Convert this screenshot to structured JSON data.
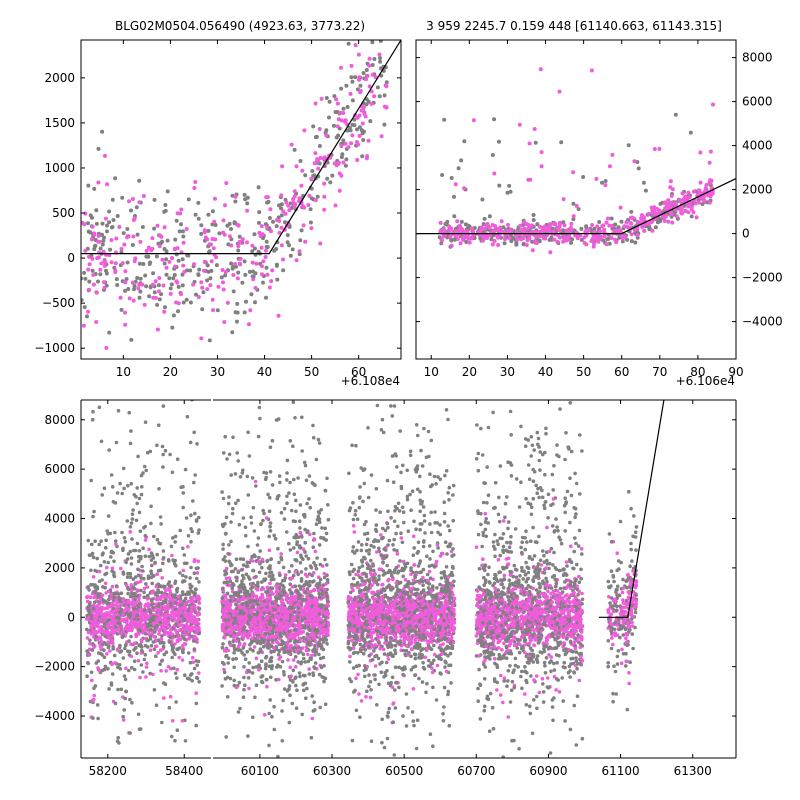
{
  "colors": {
    "gray": "#808080",
    "magenta": "#f05cdc",
    "fit": "#000000"
  },
  "chart_data": [
    {
      "id": "top-left",
      "type": "scatter",
      "title": "BLG02M0504.056490 (4923.63, 3773.22)",
      "x_offset_label": "+6.108e4",
      "xlim": [
        1,
        69
      ],
      "ylim": [
        -1120,
        2420
      ],
      "xticks": [
        "10",
        "20",
        "30",
        "40",
        "50",
        "60"
      ],
      "yticks": [
        "−1000",
        "−500",
        "0",
        "500",
        "1000",
        "1500",
        "2000"
      ],
      "xtick_values": [
        10,
        20,
        30,
        40,
        50,
        60
      ],
      "ytick_values": [
        -1000,
        -500,
        0,
        500,
        1000,
        1500,
        2000
      ],
      "y_axis_side": "left",
      "series": [
        {
          "color": "gray",
          "x_range": [
            1,
            66
          ],
          "count": 420,
          "seed": 11
        },
        {
          "color": "magenta",
          "x_range": [
            1,
            66
          ],
          "count": 330,
          "seed": 23
        }
      ],
      "fit": {
        "x": [
          1,
          41,
          69
        ],
        "y": [
          50,
          50,
          2420
        ]
      }
    },
    {
      "id": "top-right",
      "type": "scatter",
      "title": "3 959 2245.7 0.159 448 [61140.663, 61143.315]",
      "x_offset_label": "+6.106e4",
      "xlim": [
        6,
        90
      ],
      "ylim": [
        -5700,
        8800
      ],
      "xticks": [
        "10",
        "20",
        "30",
        "40",
        "50",
        "60",
        "70",
        "80",
        "90"
      ],
      "yticks": [
        "−4000",
        "−2000",
        "0",
        "2000",
        "4000",
        "6000",
        "8000"
      ],
      "xtick_values": [
        10,
        20,
        30,
        40,
        50,
        60,
        70,
        80,
        90
      ],
      "ytick_values": [
        -4000,
        -2000,
        0,
        2000,
        4000,
        6000,
        8000
      ],
      "y_axis_side": "right",
      "series": [
        {
          "color": "gray",
          "x_range": [
            12,
            84
          ],
          "count": 380,
          "seed": 37
        },
        {
          "color": "magenta",
          "x_range": [
            12,
            84
          ],
          "count": 420,
          "seed": 41
        }
      ],
      "fit": {
        "x": [
          6,
          60,
          90
        ],
        "y": [
          0,
          0,
          2500
        ]
      }
    },
    {
      "id": "bottom",
      "type": "scatter",
      "title": "",
      "xlim": [
        58130,
        61420
      ],
      "ylim": [
        -5700,
        8800
      ],
      "xticks": [
        "58200",
        "58400",
        "60100",
        "60300",
        "60500",
        "60700",
        "60900",
        "61100",
        "61300"
      ],
      "yticks": [
        "−4000",
        "−2000",
        "0",
        "2000",
        "4000",
        "6000",
        "8000"
      ],
      "ytick_values": [
        -4000,
        -2000,
        0,
        2000,
        4000,
        6000,
        8000
      ],
      "y_axis_side": "left",
      "axis_break": {
        "left_range": [
          58130,
          58470
        ],
        "right_range": [
          59970,
          61420
        ]
      },
      "seasons": [
        {
          "range": [
            58145,
            58440
          ],
          "count": 1700
        },
        {
          "range": [
            59995,
            60290
          ],
          "count": 2200
        },
        {
          "range": [
            60345,
            60640
          ],
          "count": 2200
        },
        {
          "range": [
            60700,
            60995
          ],
          "count": 2000
        },
        {
          "range": [
            61065,
            61145
          ],
          "count": 260
        }
      ],
      "fit": {
        "x": [
          61040,
          61120,
          61220
        ],
        "y": [
          0,
          0,
          8800
        ]
      }
    }
  ]
}
